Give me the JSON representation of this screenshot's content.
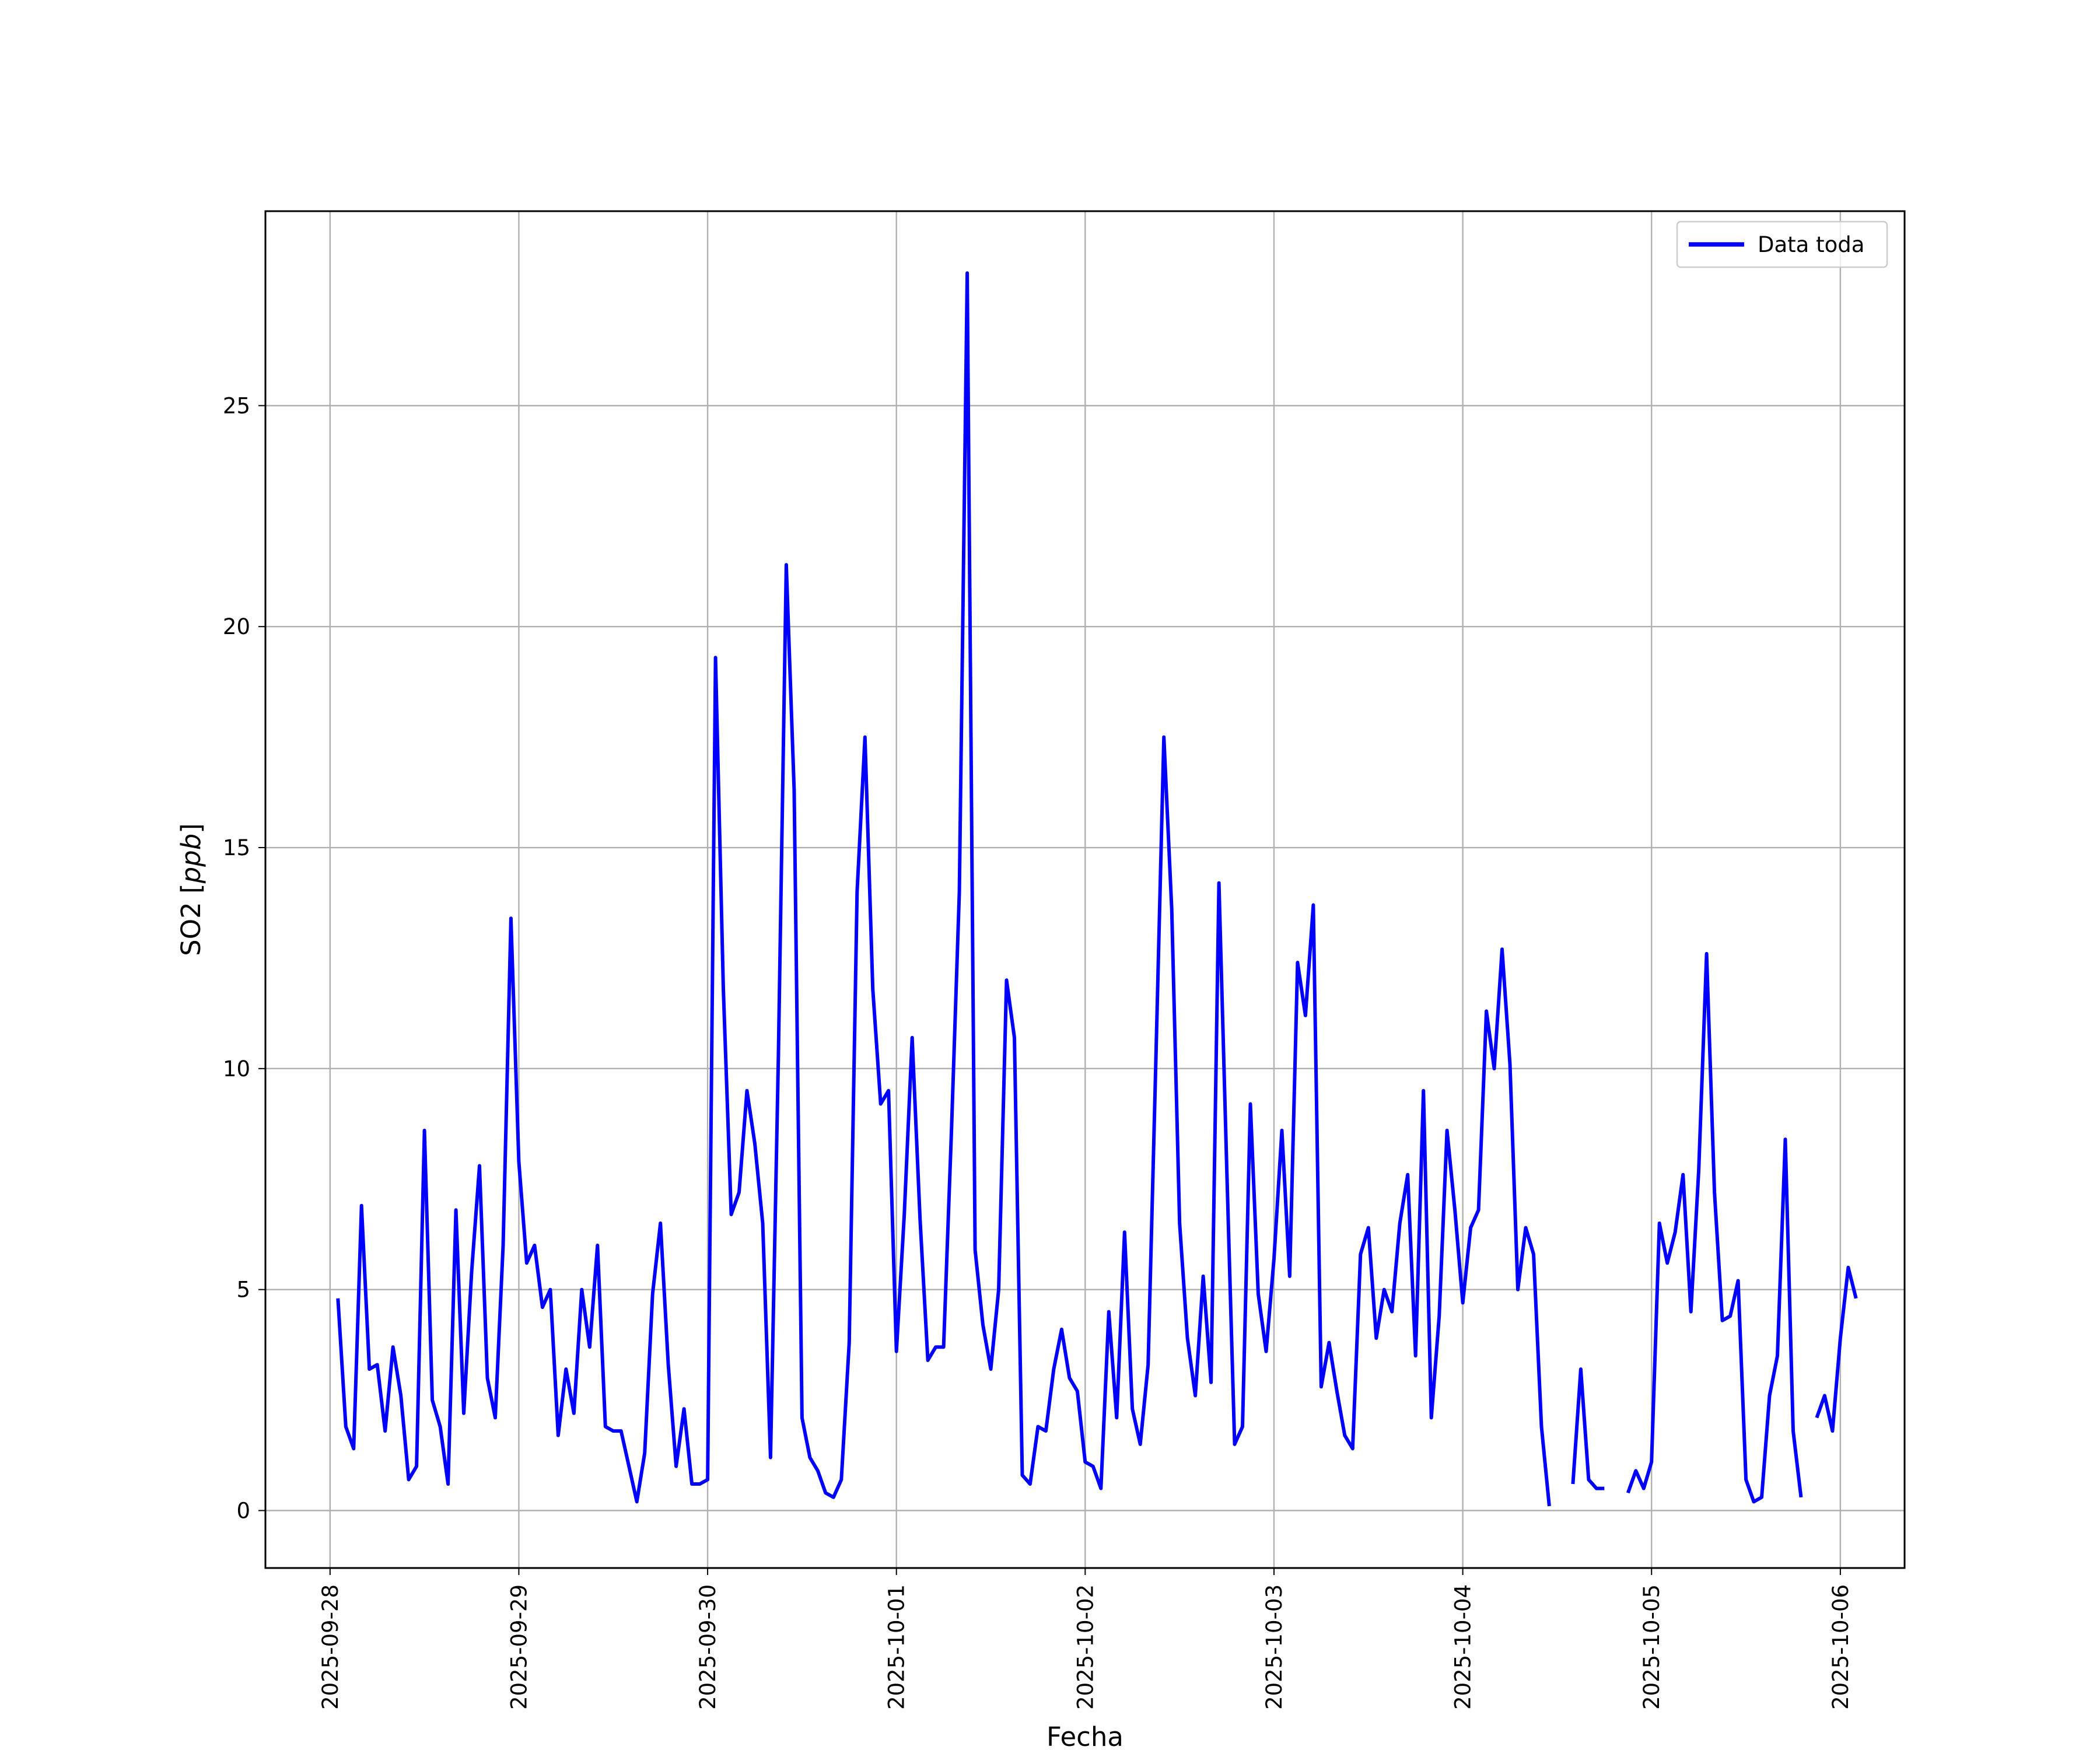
{
  "chart_data": {
    "type": "line",
    "title": "",
    "xlabel": "Fecha",
    "ylabel_text": "SO2 [",
    "ylabel_unit": "ppb",
    "ylabel_close": "]",
    "x_start": "2025-09-28 01:00",
    "x_step_hours": 1,
    "xlim": [
      "2025-09-27 15:47",
      "2025-10-06 08:10"
    ],
    "ylim": [
      -1.3,
      29.4
    ],
    "x_ticks": [
      "2025-09-28",
      "2025-09-29",
      "2025-09-30",
      "2025-10-01",
      "2025-10-02",
      "2025-10-03",
      "2025-10-04",
      "2025-10-05",
      "2025-10-06"
    ],
    "y_ticks": [
      0,
      5,
      10,
      15,
      20,
      25
    ],
    "y_tick_labels": [
      "0",
      "5",
      "10",
      "15",
      "20",
      "25"
    ],
    "grid": true,
    "legend_position": "upper right",
    "series": [
      {
        "name": "Data toda",
        "color": "#0000ff",
        "values": [
          4.8,
          1.9,
          1.4,
          6.9,
          3.2,
          3.3,
          1.8,
          3.7,
          2.6,
          0.7,
          1.0,
          8.6,
          2.5,
          1.9,
          0.6,
          6.8,
          2.2,
          5.4,
          7.8,
          3.0,
          2.1,
          6.0,
          13.4,
          7.9,
          5.6,
          6.0,
          4.6,
          5.0,
          1.7,
          3.2,
          2.2,
          5.0,
          3.7,
          6.0,
          1.9,
          1.8,
          1.8,
          1.0,
          0.2,
          1.3,
          4.9,
          6.5,
          3.3,
          1.0,
          2.3,
          0.6,
          0.6,
          0.7,
          19.3,
          11.8,
          6.7,
          7.2,
          9.5,
          8.3,
          6.5,
          1.2,
          10.3,
          21.4,
          16.3,
          2.1,
          1.2,
          0.9,
          0.4,
          0.3,
          0.7,
          3.8,
          14.0,
          17.5,
          11.8,
          9.2,
          9.5,
          3.6,
          6.7,
          10.7,
          6.6,
          3.4,
          3.7,
          3.7,
          8.6,
          14.0,
          28.0,
          5.9,
          4.2,
          3.2,
          5.0,
          12.0,
          10.7,
          0.8,
          0.6,
          1.9,
          1.8,
          3.2,
          4.1,
          3.0,
          2.7,
          1.1,
          1.0,
          0.5,
          4.5,
          2.1,
          6.3,
          2.3,
          1.5,
          3.3,
          10.3,
          17.5,
          13.6,
          6.5,
          3.9,
          2.6,
          5.3,
          2.9,
          14.2,
          7.7,
          1.5,
          1.9,
          9.2,
          4.9,
          3.6,
          5.7,
          8.6,
          5.3,
          12.4,
          11.2,
          13.7,
          2.8,
          3.8,
          2.7,
          1.7,
          1.4,
          5.8,
          6.4,
          3.9,
          5.0,
          4.5,
          6.5,
          7.6,
          3.5,
          9.5,
          2.1,
          4.4,
          8.6,
          6.8,
          4.7,
          6.4,
          6.8,
          11.3,
          10.0,
          12.7,
          10.1,
          5.0,
          6.4,
          5.8,
          1.9,
          0.1,
          null,
          null,
          0.6,
          3.2,
          0.7,
          0.5,
          0.5,
          null,
          null,
          0.4,
          0.9,
          0.5,
          1.1,
          6.5,
          5.6,
          6.3,
          7.6,
          4.5,
          7.7,
          12.6,
          7.2,
          4.3,
          4.4,
          5.2,
          0.7,
          0.2,
          0.3,
          2.6,
          3.5,
          8.4,
          1.8,
          0.3,
          null,
          2.1,
          2.6,
          1.8,
          3.9,
          5.5,
          4.8
        ]
      }
    ]
  }
}
